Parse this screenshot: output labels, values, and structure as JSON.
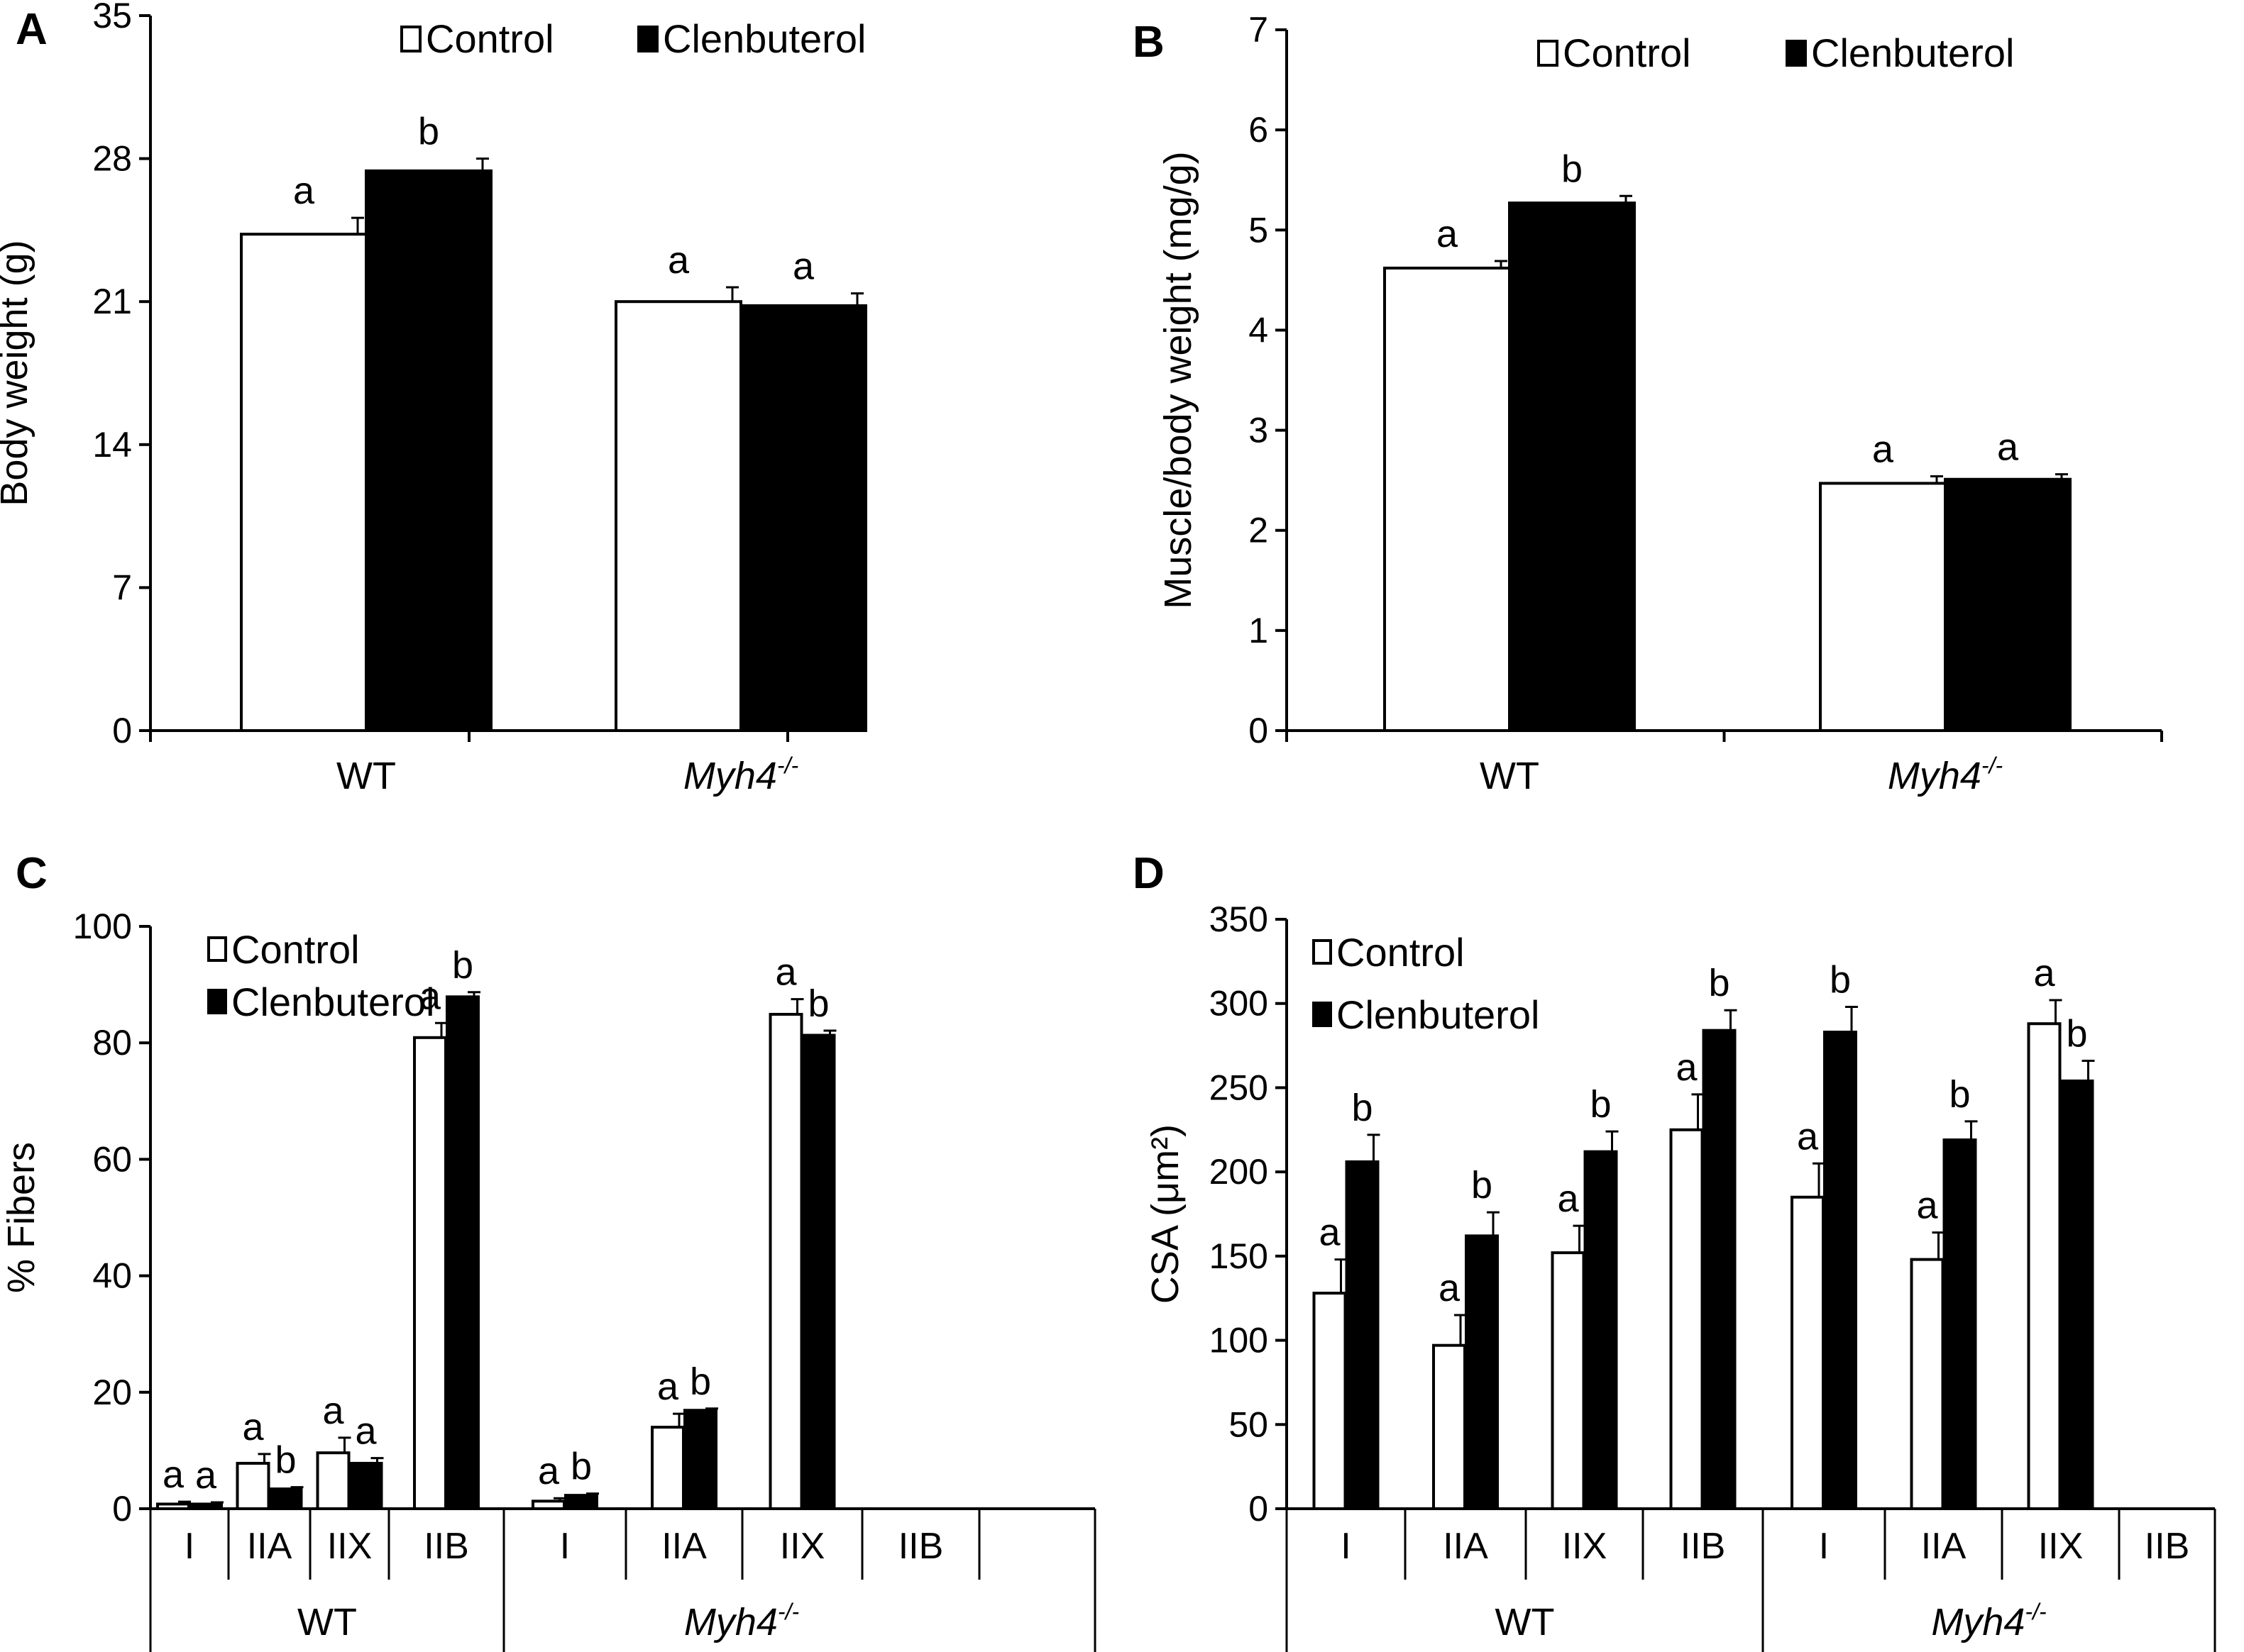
{
  "figure": {
    "series_names": [
      "Control",
      "Clenbuterol"
    ],
    "colors": {
      "control_fill": "#ffffff",
      "clenbuterol_fill": "#000000",
      "stroke": "#000000"
    }
  },
  "chart_data": [
    {
      "panel": "A",
      "type": "bar",
      "ylabel": "Body weight (g)",
      "ylim": [
        0,
        35
      ],
      "yticks": [
        0,
        7,
        14,
        21,
        28,
        35
      ],
      "categories": [
        "WT",
        "Myh4"
      ],
      "category_superscripts": [
        "",
        "-/-"
      ],
      "category_italic": [
        false,
        true
      ],
      "legend": "top-center",
      "series": [
        {
          "name": "Control",
          "values": [
            24.3,
            21.0
          ],
          "errors": [
            0.8,
            0.7
          ],
          "labels": [
            "a",
            "a"
          ]
        },
        {
          "name": "Clenbuterol",
          "values": [
            27.4,
            20.8
          ],
          "errors": [
            0.6,
            0.6
          ],
          "labels": [
            "b",
            "a"
          ]
        }
      ]
    },
    {
      "panel": "B",
      "type": "bar",
      "ylabel": "Muscle/body weight (mg/g)",
      "ylim": [
        0,
        7
      ],
      "yticks": [
        0,
        1,
        2,
        3,
        4,
        5,
        6,
        7
      ],
      "categories": [
        "WT",
        "Myh4"
      ],
      "category_superscripts": [
        "",
        "-/-"
      ],
      "category_italic": [
        false,
        true
      ],
      "legend": "top-center",
      "series": [
        {
          "name": "Control",
          "values": [
            4.62,
            2.47
          ],
          "errors": [
            0.07,
            0.07
          ],
          "labels": [
            "a",
            "a"
          ]
        },
        {
          "name": "Clenbuterol",
          "values": [
            5.27,
            2.51
          ],
          "errors": [
            0.07,
            0.05
          ],
          "labels": [
            "b",
            "a"
          ]
        }
      ]
    },
    {
      "panel": "C",
      "type": "bar",
      "ylabel": "% Fibers",
      "ylim": [
        0,
        100
      ],
      "yticks": [
        0,
        20,
        40,
        60,
        80,
        100
      ],
      "categories": [
        "I",
        "IIA",
        "IIX",
        "IIB",
        "I",
        "IIA",
        "IIX",
        "IIB"
      ],
      "groups": [
        {
          "label": "WT",
          "italic": false,
          "superscript": "",
          "span": [
            0,
            3
          ]
        },
        {
          "label": "Myh4",
          "italic": true,
          "superscript": "-/-",
          "span": [
            4,
            7
          ]
        }
      ],
      "legend": "top-left",
      "series": [
        {
          "name": "Control",
          "values": [
            0.8,
            7.8,
            9.6,
            80.9,
            1.3,
            14.0,
            84.9,
            null
          ],
          "errors": [
            0.4,
            1.6,
            2.6,
            2.5,
            0.5,
            2.3,
            2.6,
            null
          ],
          "labels": [
            "a",
            "a",
            "a",
            "a",
            "a",
            "a",
            "a",
            ""
          ]
        },
        {
          "name": "Clenbuterol",
          "values": [
            0.8,
            3.4,
            7.8,
            87.9,
            2.3,
            16.9,
            81.3,
            null
          ],
          "errors": [
            0.3,
            0.3,
            0.9,
            0.8,
            0.3,
            0.3,
            0.8,
            null
          ],
          "labels": [
            "a",
            "b",
            "a",
            "b",
            "b",
            "b",
            "b",
            ""
          ]
        }
      ]
    },
    {
      "panel": "D",
      "type": "bar",
      "ylabel": "CSA (μm²)",
      "ylim": [
        0,
        350
      ],
      "yticks": [
        0,
        50,
        100,
        150,
        200,
        250,
        300,
        350
      ],
      "categories": [
        "I",
        "IIA",
        "IIX",
        "IIB",
        "I",
        "IIA",
        "IIX",
        "IIB"
      ],
      "groups": [
        {
          "label": "WT",
          "italic": false,
          "superscript": "",
          "span": [
            0,
            3
          ]
        },
        {
          "label": "Myh4",
          "italic": true,
          "superscript": "-/-",
          "span": [
            4,
            7
          ]
        }
      ],
      "legend": "top-left",
      "series": [
        {
          "name": "Control",
          "values": [
            128,
            97,
            152,
            225,
            185,
            148,
            288,
            null
          ],
          "errors": [
            20,
            18,
            16,
            21,
            20,
            16,
            14,
            null
          ],
          "labels": [
            "a",
            "a",
            "a",
            "a",
            "a",
            "a",
            "a",
            ""
          ]
        },
        {
          "name": "Clenbuterol",
          "values": [
            206,
            162,
            212,
            284,
            283,
            219,
            254,
            null
          ],
          "errors": [
            16,
            14,
            12,
            12,
            15,
            11,
            12,
            null
          ],
          "labels": [
            "b",
            "b",
            "b",
            "b",
            "b",
            "b",
            "b",
            ""
          ]
        }
      ]
    }
  ]
}
